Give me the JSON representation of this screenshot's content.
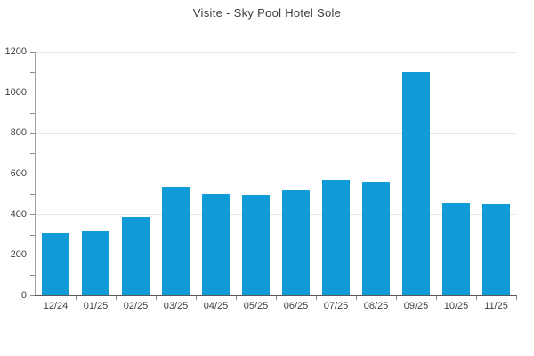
{
  "chart_data": {
    "type": "bar",
    "title": "Visite - Sky Pool Hotel Sole",
    "categories": [
      "12/24",
      "01/25",
      "02/25",
      "03/25",
      "04/25",
      "05/25",
      "06/25",
      "07/25",
      "08/25",
      "09/25",
      "10/25",
      "11/25"
    ],
    "values": [
      305,
      320,
      385,
      535,
      500,
      495,
      515,
      570,
      560,
      1100,
      455,
      450
    ],
    "xlabel": "",
    "ylabel": "",
    "ylim": [
      0,
      1200
    ],
    "y_tick_label_step": 200,
    "y_minor_tick_step": 100,
    "grid": "horizontal-major",
    "legend_position": "none",
    "colors": {
      "bar": "#0f9bd7",
      "gridline": "#e5e5e5",
      "axis_left": "#a0a0a0",
      "axis_bottom": "#5a5a5a",
      "tick": "#8a8a8a",
      "text": "#3f3f3f",
      "background": "#ffffff"
    }
  }
}
